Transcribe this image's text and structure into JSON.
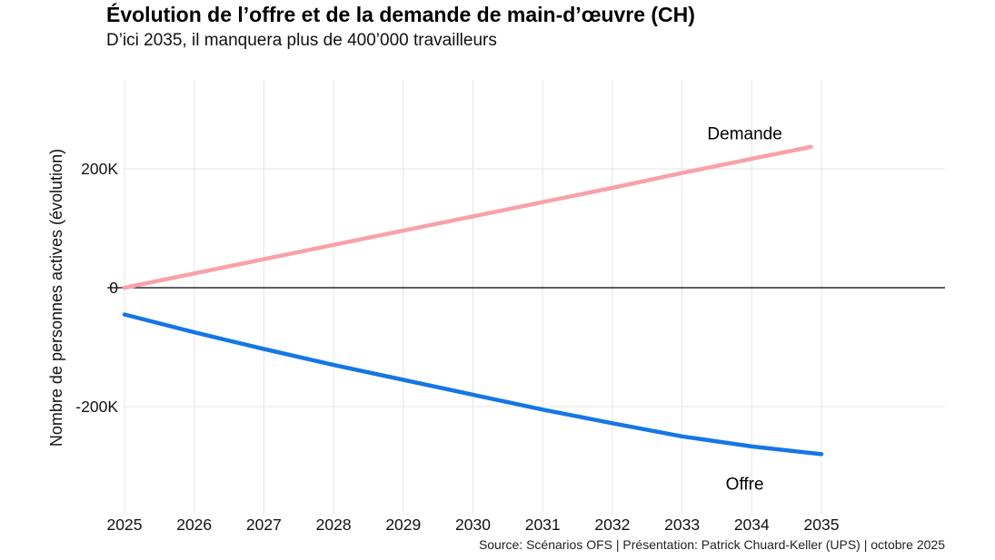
{
  "header": {
    "title": "Évolution de l’offre et de la demande de main-d’œuvre (CH)",
    "subtitle": "D’ici 2035, il manquera plus de 400’000 travailleurs"
  },
  "footer": {
    "source": "Source: Scénarios OFS | Présentation: Patrick Chuard-Keller (UPS) | octobre 2025"
  },
  "chart_data": {
    "type": "line",
    "title": "Évolution de l’offre et de la demande de main-d’œuvre (CH)",
    "subtitle": "D’ici 2035, il manquera plus de 400’000 travailleurs",
    "xlabel": "",
    "ylabel": "Nombre de personnes actives (évolution)",
    "unit": "K = thousands of active persons",
    "x_domain": [
      2025,
      2035
    ],
    "y_domain_k": [
      -380,
      350
    ],
    "grid": true,
    "legend": "inline-labels",
    "zero_line": true,
    "colors": {
      "demande": "#F8A1A8",
      "offre": "#1576E4",
      "gridline": "#E4E4E4",
      "zero_line": "#000000",
      "text": "#111111"
    },
    "x_ticks": [
      {
        "value": 2025,
        "label": "2025"
      },
      {
        "value": 2026,
        "label": "2026"
      },
      {
        "value": 2027,
        "label": "2027"
      },
      {
        "value": 2028,
        "label": "2028"
      },
      {
        "value": 2029,
        "label": "2029"
      },
      {
        "value": 2030,
        "label": "2030"
      },
      {
        "value": 2031,
        "label": "2031"
      },
      {
        "value": 2032,
        "label": "2032"
      },
      {
        "value": 2033,
        "label": "2033"
      },
      {
        "value": 2034,
        "label": "2034"
      },
      {
        "value": 2035,
        "label": "2035"
      }
    ],
    "y_ticks": [
      {
        "value": 200,
        "label": "200K"
      },
      {
        "value": 0,
        "label": "0"
      },
      {
        "value": -200,
        "label": "-200K"
      }
    ],
    "series": [
      {
        "name": "Demande",
        "color": "#F8A1A8",
        "x": [
          2025,
          2026,
          2027,
          2028,
          2029,
          2030,
          2031,
          2032,
          2033,
          2034,
          2034.85
        ],
        "values_k": [
          0,
          24,
          48,
          72,
          96,
          120,
          144,
          168,
          193,
          217,
          237
        ]
      },
      {
        "name": "Offre",
        "color": "#1576E4",
        "x": [
          2025,
          2026,
          2027,
          2028,
          2029,
          2030,
          2031,
          2032,
          2033,
          2034,
          2035
        ],
        "values_k": [
          -45,
          -75,
          -103,
          -130,
          -155,
          -180,
          -205,
          -228,
          -250,
          -267,
          -280
        ]
      }
    ],
    "annotations": [
      {
        "text": "Demande",
        "x": 2033.9,
        "y_k": 250
      },
      {
        "text": "Offre",
        "x": 2033.9,
        "y_k": -340
      }
    ]
  }
}
